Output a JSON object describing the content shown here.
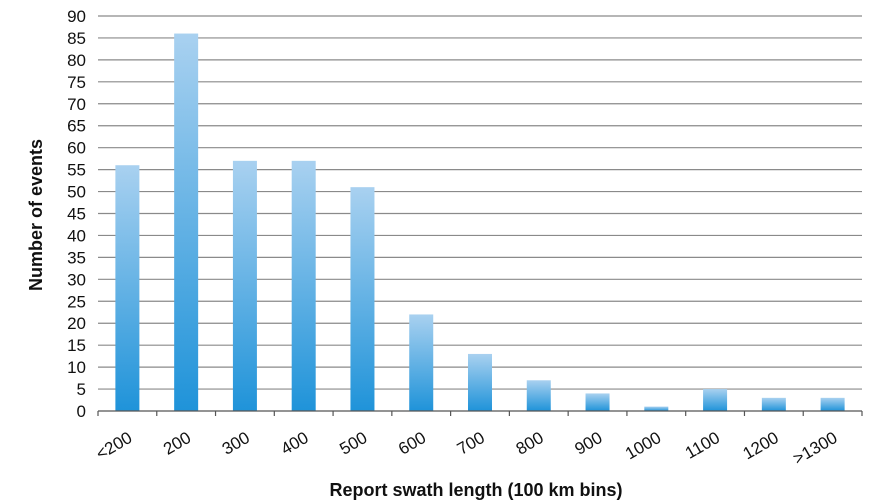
{
  "chart_data": {
    "type": "bar",
    "categories": [
      "<200",
      "200",
      "300",
      "400",
      "500",
      "600",
      "700",
      "800",
      "900",
      "1000",
      "1100",
      "1200",
      ">1300"
    ],
    "values": [
      56,
      86,
      57,
      57,
      51,
      22,
      13,
      7,
      4,
      1,
      5,
      3,
      3
    ],
    "xlabel": "Report swath length (100 km bins)",
    "ylabel": "Number of events",
    "ylim": [
      0,
      90
    ],
    "yticks": [
      0,
      5,
      10,
      15,
      20,
      25,
      30,
      35,
      40,
      45,
      50,
      55,
      60,
      65,
      70,
      75,
      80,
      85,
      90
    ],
    "grid": true,
    "legend": "none",
    "colors": {
      "bar_top": "#a9d1f0",
      "bar_bottom": "#1f93d9"
    }
  }
}
